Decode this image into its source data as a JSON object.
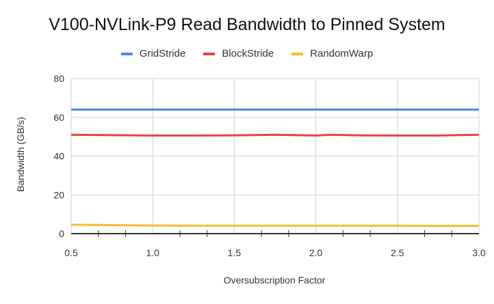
{
  "chart_data": {
    "type": "line",
    "title": "V100-NVLink-P9 Read Bandwidth to Pinned System",
    "xlabel": "Oversubscription Factor",
    "ylabel": "Bandwidth (GB/s)",
    "xlim": [
      0.5,
      3.0
    ],
    "ylim": [
      0,
      80
    ],
    "x_ticks": [
      "0.5",
      "1.0",
      "1.5",
      "2.0",
      "2.5",
      "3.0"
    ],
    "y_ticks": [
      "0",
      "20",
      "40",
      "60",
      "80"
    ],
    "grid": true,
    "legend_position": "top",
    "x": [
      0.5,
      0.75,
      1.0,
      1.25,
      1.5,
      1.75,
      2.0,
      2.1,
      2.25,
      2.5,
      2.75,
      3.0
    ],
    "series": [
      {
        "name": "GridStride",
        "color": "#4e86ec",
        "values": [
          64,
          64,
          64,
          64,
          64,
          64,
          64,
          64,
          64,
          64,
          64,
          64
        ]
      },
      {
        "name": "BlockStride",
        "color": "#e2463d",
        "values": [
          51,
          50.8,
          50.6,
          50.6,
          50.7,
          51,
          50.6,
          51,
          50.7,
          50.6,
          50.6,
          51
        ]
      },
      {
        "name": "RandomWarp",
        "color": "#f6bb2e",
        "values": [
          4.6,
          4.4,
          4.2,
          4.1,
          4.1,
          4.1,
          4.1,
          4.1,
          4.1,
          4.1,
          4.0,
          4.0
        ]
      }
    ]
  }
}
